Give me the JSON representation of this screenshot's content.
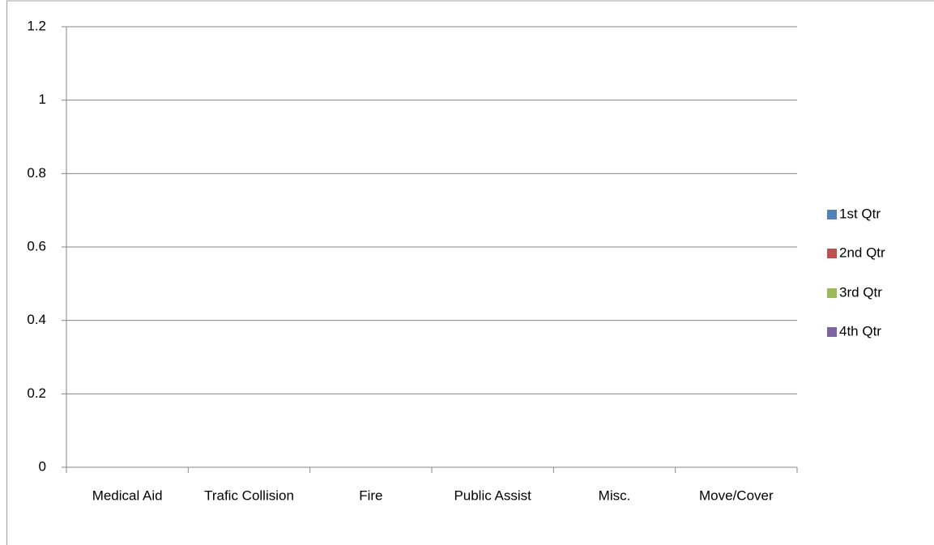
{
  "chart_data": {
    "type": "bar",
    "categories": [
      "Medical Aid",
      "Trafic Collision",
      "Fire",
      "Public Assist",
      "Misc.",
      "Move/Cover"
    ],
    "series": [
      {
        "name": "1st Qtr",
        "color": "#4f81bd",
        "values": [
          0,
          0,
          0,
          0,
          0,
          0
        ]
      },
      {
        "name": "2nd Qtr",
        "color": "#c0504d",
        "values": [
          0,
          0,
          0,
          0,
          0,
          0
        ]
      },
      {
        "name": "3rd Qtr",
        "color": "#9bbb59",
        "values": [
          0,
          0,
          0,
          0,
          0,
          0
        ]
      },
      {
        "name": "4th Qtr",
        "color": "#8064a2",
        "values": [
          0,
          0,
          0,
          0,
          0,
          0
        ]
      }
    ],
    "ylim": [
      0,
      1.2
    ],
    "yticks": [
      0,
      0.2,
      0.4,
      0.6,
      0.8,
      1,
      1.2
    ],
    "grid": true,
    "legend": "right"
  }
}
